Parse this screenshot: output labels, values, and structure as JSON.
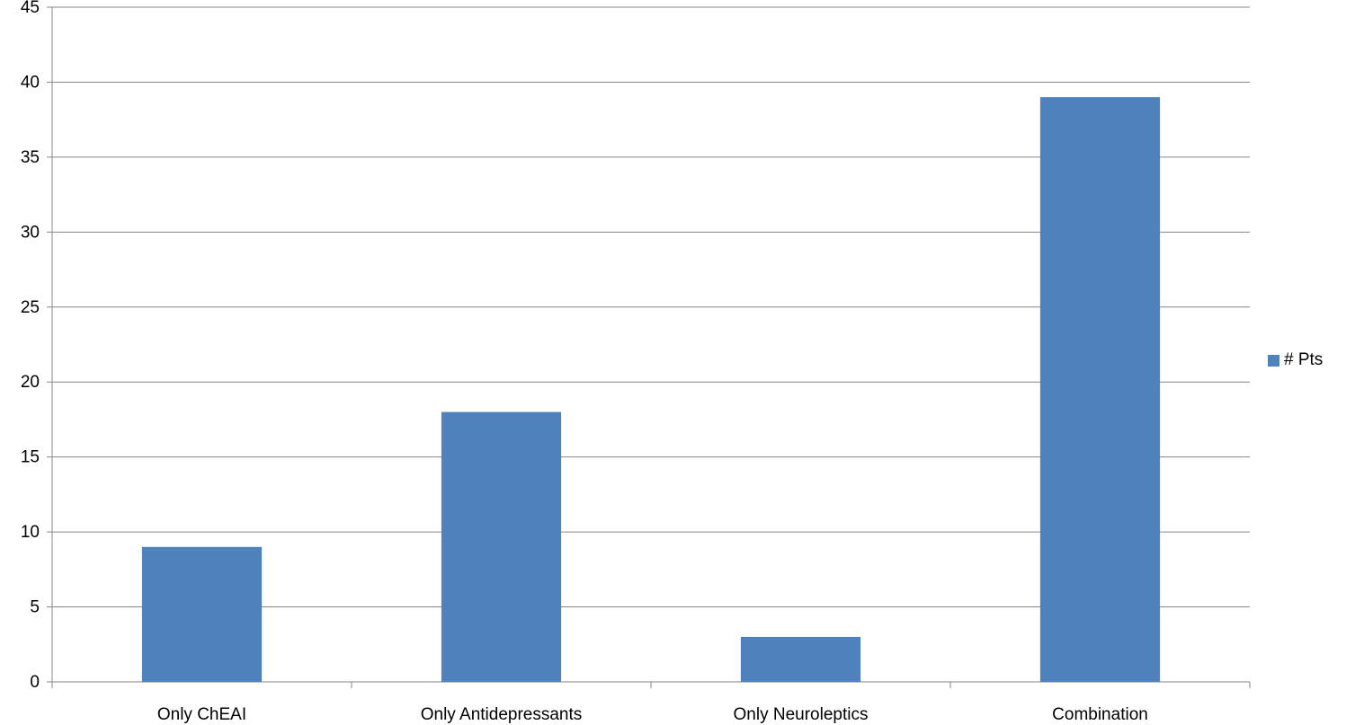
{
  "chart_data": {
    "type": "bar",
    "categories": [
      "Only ChEAI",
      "Only Antidepressants",
      "Only Neuroleptics",
      "Combination"
    ],
    "series": [
      {
        "name": "# Pts",
        "values": [
          9,
          18,
          3,
          39
        ],
        "color": "#4F81BD"
      }
    ],
    "y_ticks": [
      "0",
      "5",
      "10",
      "15",
      "20",
      "25",
      "30",
      "35",
      "40",
      "45"
    ],
    "ylim": [
      0,
      45
    ],
    "grid": true,
    "legend_position": "right"
  }
}
